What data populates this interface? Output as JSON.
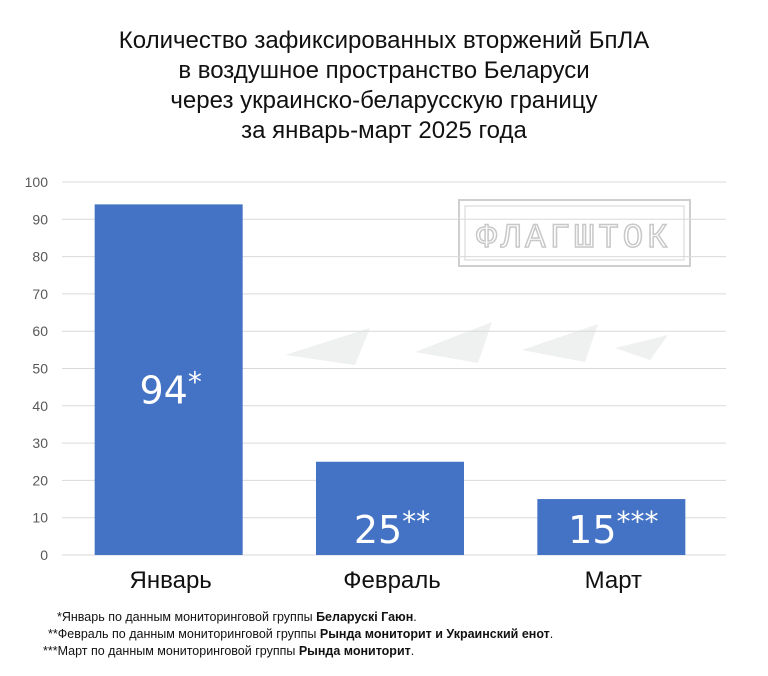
{
  "title_lines": [
    "Количество зафиксированных вторжений БпЛА",
    "в воздушное пространство Беларуси",
    "через украинско-беларусскую границу",
    "за январь-март 2025 года"
  ],
  "watermark": "ФЛАГШТОК",
  "colors": {
    "bar": "#4472C4",
    "grid": "#d9d9d9",
    "axis_text": "#595959",
    "label_text": "#ffffff"
  },
  "chart_data": {
    "type": "bar",
    "title": "Количество зафиксированных вторжений БпЛА в воздушное пространство Беларуси через украинско-беларусскую границу за январь-март 2025 года",
    "categories": [
      "Январь",
      "Февраль",
      "Март"
    ],
    "values": [
      94,
      25,
      15
    ],
    "data_labels": [
      "94",
      "25",
      "15"
    ],
    "data_label_marks": [
      "*",
      "**",
      "***"
    ],
    "yticks": [
      0,
      10,
      20,
      30,
      40,
      50,
      60,
      70,
      80,
      90,
      100
    ],
    "ylim": [
      0,
      100
    ],
    "grid": true,
    "legend": "none"
  },
  "footnotes": [
    {
      "mark": "*",
      "text": "Январь по данным мониторинговой группы ",
      "bold": "Беларускі Гаюн",
      "tail": "."
    },
    {
      "mark": "**",
      "text": "Февраль по данным мониторинговой группы ",
      "bold": "Рында мониторит и Украинский енот",
      "tail": "."
    },
    {
      "mark": "***",
      "text": "Март по данным мониторинговой группы ",
      "bold": "Рында мониторит",
      "tail": "."
    }
  ]
}
